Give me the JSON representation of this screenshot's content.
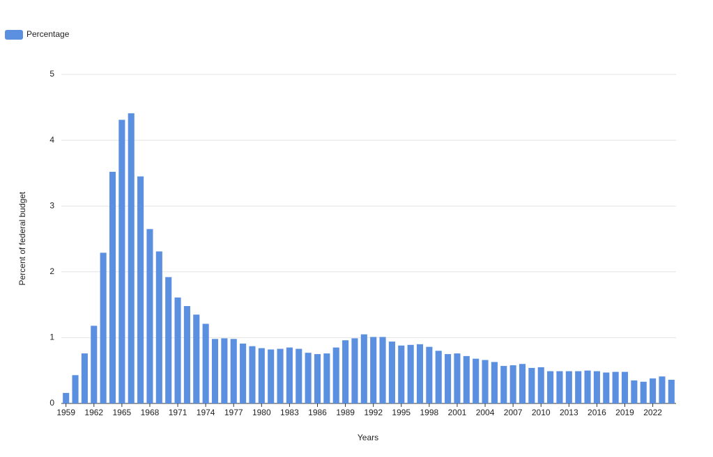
{
  "chart_data": {
    "type": "bar",
    "x_label": "Years",
    "y_label": "Percent of federal budget",
    "legend": "top-left",
    "series": [
      {
        "name": "Percentage",
        "color": "#5b8fe0",
        "values": [
          0.16,
          0.43,
          0.76,
          1.18,
          2.29,
          3.52,
          4.31,
          4.41,
          3.45,
          2.65,
          2.31,
          1.92,
          1.61,
          1.48,
          1.35,
          1.21,
          0.98,
          0.99,
          0.98,
          0.91,
          0.87,
          0.84,
          0.82,
          0.83,
          0.85,
          0.83,
          0.77,
          0.75,
          0.76,
          0.85,
          0.96,
          0.99,
          1.05,
          1.01,
          1.01,
          0.94,
          0.88,
          0.89,
          0.9,
          0.86,
          0.8,
          0.75,
          0.76,
          0.72,
          0.68,
          0.66,
          0.63,
          0.57,
          0.58,
          0.6,
          0.54,
          0.55,
          0.49,
          0.49,
          0.49,
          0.49,
          0.5,
          0.49,
          0.47,
          0.48,
          0.48,
          0.35,
          0.33,
          0.38,
          0.41,
          0.36
        ]
      }
    ],
    "categories": [
      "1959",
      null,
      null,
      "1962",
      null,
      null,
      "1965",
      null,
      null,
      "1968",
      null,
      null,
      "1971",
      null,
      null,
      "1974",
      null,
      null,
      "1977",
      null,
      null,
      "1980",
      null,
      null,
      "1983",
      null,
      null,
      "1986",
      null,
      null,
      "1989",
      null,
      null,
      "1992",
      null,
      null,
      "1995",
      null,
      null,
      "1998",
      null,
      null,
      "2001",
      null,
      null,
      "2004",
      null,
      null,
      "2007",
      null,
      null,
      "2010",
      null,
      null,
      "2013",
      null,
      null,
      "2016",
      null,
      null,
      "2019",
      null,
      null,
      "2022",
      null,
      null
    ],
    "ylim": [
      0,
      5
    ],
    "yticks": [
      0,
      1,
      2,
      3,
      4,
      5
    ],
    "grid": true
  }
}
